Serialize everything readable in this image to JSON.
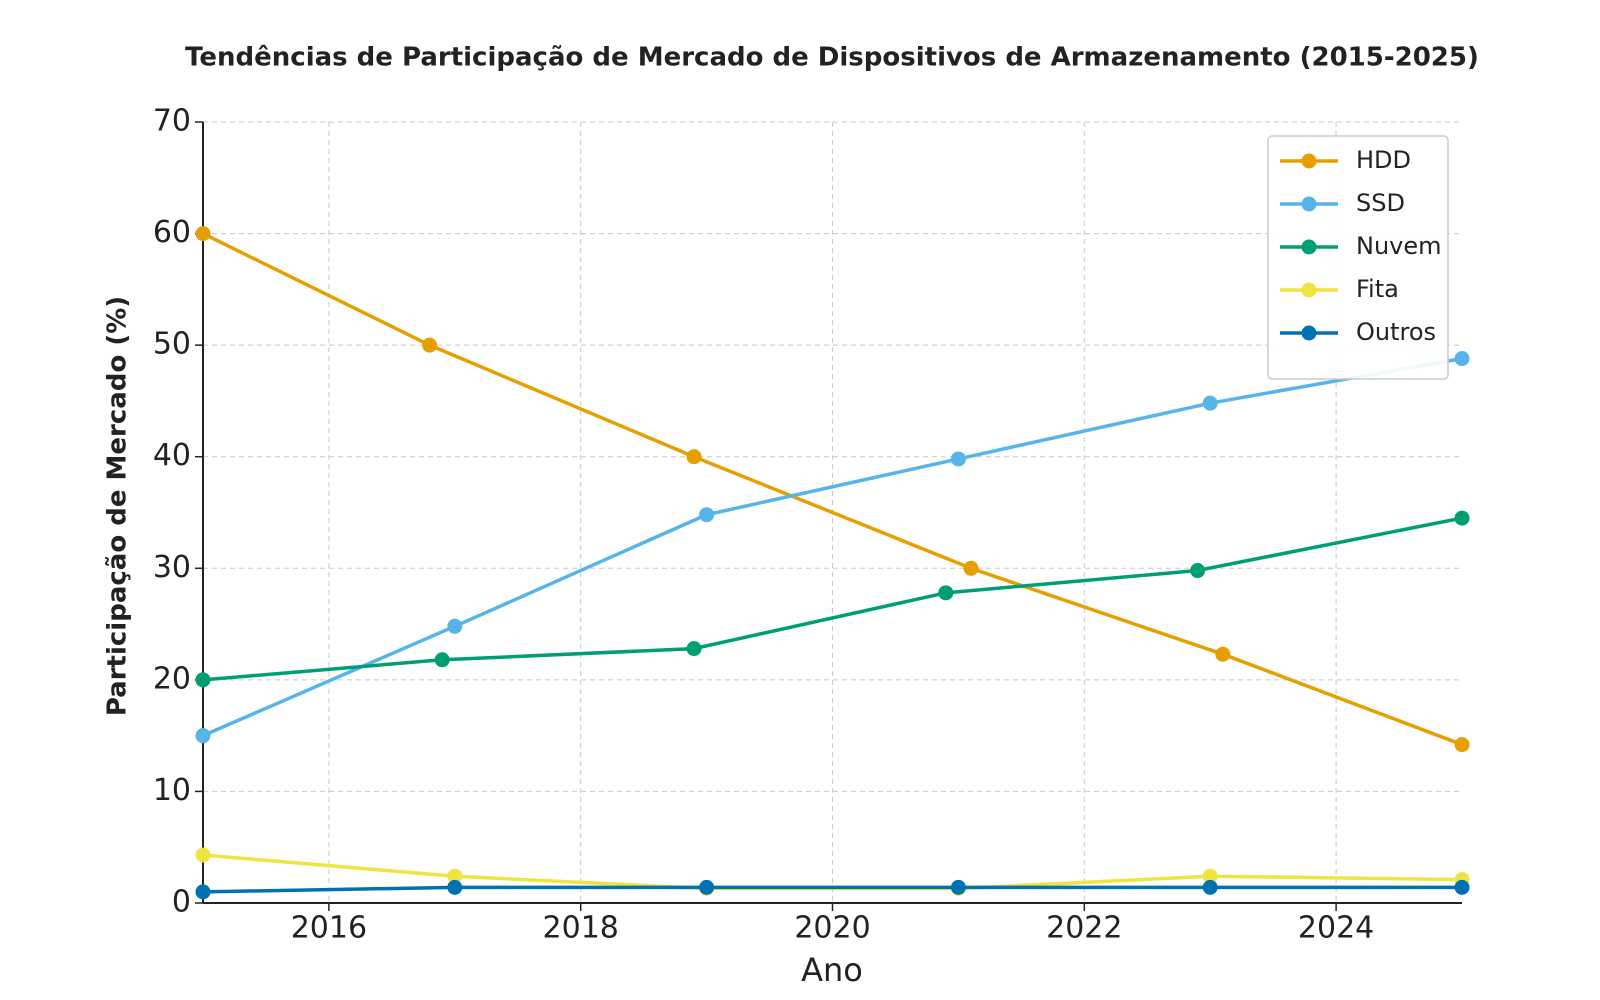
{
  "chart_data": {
    "type": "line",
    "title": "Tendências de Participação de Mercado de Dispositivos de Armazenamento (2015-2025)",
    "x_label": "Ano",
    "y_label": "Participação de Mercado (%)",
    "xlim": [
      2015,
      2025
    ],
    "xticks": [
      2016,
      2018,
      2020,
      2022,
      2024
    ],
    "ylim": [
      0,
      70
    ],
    "yticks": [
      0,
      10,
      20,
      30,
      40,
      50,
      60,
      70
    ],
    "grid": true,
    "legend": "upper right",
    "series": [
      {
        "name": "HDD",
        "color": "#E69F00",
        "x": [
          2015,
          2016.8,
          2018.9,
          2021.1,
          2023.1,
          2025
        ],
        "values": [
          60,
          50,
          40,
          30,
          22.3,
          14.2
        ]
      },
      {
        "name": "SSD",
        "color": "#56B4E9",
        "x": [
          2015,
          2017,
          2019,
          2021,
          2023,
          2025
        ],
        "values": [
          15,
          24.8,
          34.8,
          39.8,
          44.8,
          48.8
        ]
      },
      {
        "name": "Nuvem",
        "color": "#009E73",
        "x": [
          2015,
          2016.9,
          2018.9,
          2020.9,
          2022.9,
          2025
        ],
        "values": [
          20,
          21.8,
          22.8,
          27.8,
          29.8,
          34.5
        ]
      },
      {
        "name": "Fita",
        "color": "#F0E442",
        "x": [
          2015,
          2017,
          2019,
          2021,
          2023,
          2025
        ],
        "values": [
          4.3,
          2.4,
          1.3,
          1.3,
          2.4,
          2.1
        ]
      },
      {
        "name": "Outros",
        "color": "#0072B2",
        "x": [
          2015,
          2017,
          2019,
          2021,
          2023,
          2025
        ],
        "values": [
          1.0,
          1.4,
          1.4,
          1.4,
          1.4,
          1.4
        ]
      }
    ]
  }
}
